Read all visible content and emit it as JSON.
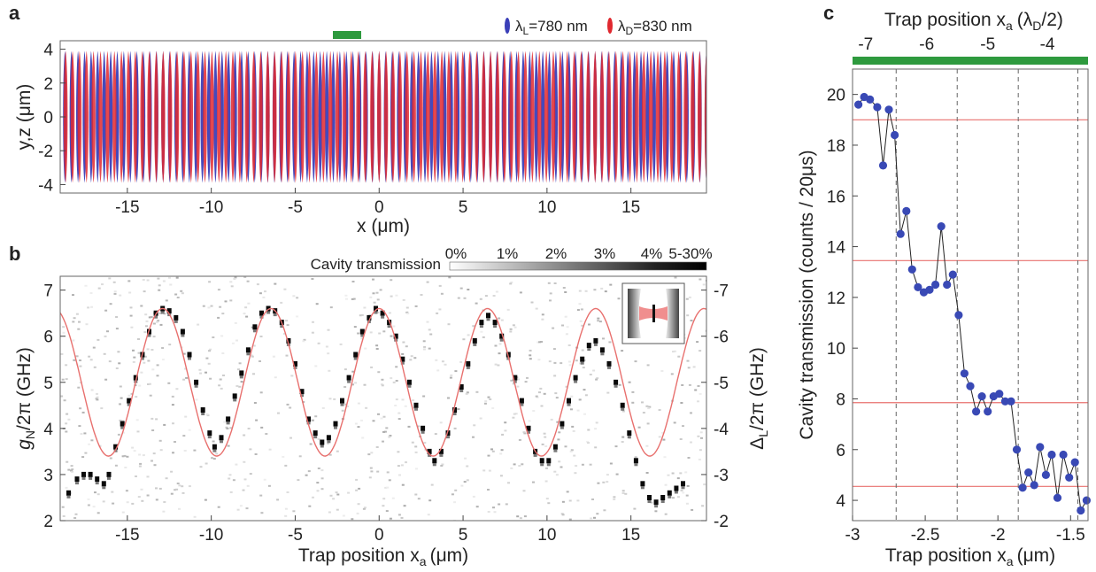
{
  "panels": {
    "a": {
      "letter": "a",
      "xlabel": "x (μm)",
      "ylabel": "y,z (μm)",
      "xticks": [
        "-15",
        "-10",
        "-5",
        "0",
        "5",
        "10",
        "15"
      ],
      "yticks": [
        "-4",
        "-2",
        "0",
        "2",
        "4"
      ],
      "legend": [
        {
          "main": "λ",
          "sub": "L",
          "rest": "=780 nm",
          "color": "#3b3fb8"
        },
        {
          "main": "λ",
          "sub": "D",
          "rest": "=830 nm",
          "color": "#e0282f"
        }
      ],
      "marker_color": "#2e9a3e"
    },
    "b": {
      "letter": "b",
      "xlabel": "Trap position x",
      "xlabel_sub": "a",
      "xlabel_unit": "(μm)",
      "ylabel_left": "g",
      "ylabel_left_sub": "N",
      "ylabel_left_rest": "/2π (GHz)",
      "ylabel_right": "Δ",
      "ylabel_right_sub": "L",
      "ylabel_right_rest": "/2π (GHz)",
      "xticks": [
        "-15",
        "-10",
        "-5",
        "0",
        "5",
        "10",
        "15"
      ],
      "yticks_left": [
        "2",
        "3",
        "4",
        "5",
        "6",
        "7"
      ],
      "yticks_right": [
        "-2",
        "-3",
        "-4",
        "-5",
        "-6",
        "-7"
      ],
      "colorbar_title": "Cavity transmission",
      "colorbar_ticks": [
        "0%",
        "1%",
        "2%",
        "3%",
        "4%",
        "5-30%"
      ],
      "curve_color": "#e8706e"
    },
    "c": {
      "letter": "c",
      "xlabel": "Trap position x",
      "xlabel_sub": "a",
      "xlabel_unit": "(μm)",
      "ylabel": "Cavity transmission (counts / 20μs)",
      "top_label": "Trap position x",
      "top_label_sub": "a",
      "top_label_unit": "(λ",
      "top_label_unit_sub": "D",
      "top_label_unit_end": "/2)",
      "xticks": [
        "-3",
        "-2.5",
        "-2",
        "-1.5"
      ],
      "top_ticks": [
        "-7",
        "-6",
        "-5",
        "-4"
      ],
      "yticks": [
        "4",
        "6",
        "8",
        "10",
        "12",
        "14",
        "16",
        "18",
        "20"
      ],
      "bar_color": "#2e9a3e",
      "point_color": "#3949b5",
      "hline_color": "#e8706e"
    }
  },
  "chart_data": [
    {
      "panel": "a",
      "type": "line",
      "title": "",
      "xlabel": "x (μm)",
      "ylabel": "y,z (μm)",
      "xlim": [
        -19,
        19.5
      ],
      "ylim": [
        -4.5,
        4.5
      ],
      "series": [
        {
          "name": "λL=780 nm",
          "wavelength_nm": 780,
          "color": "#3b3fb8",
          "amplitude_um": 3.9
        },
        {
          "name": "λD=830 nm",
          "wavelength_nm": 830,
          "color": "#e0282f",
          "amplitude_um": 3.9
        }
      ],
      "highlight_x_range": [
        -3,
        -1.3
      ]
    },
    {
      "panel": "b",
      "type": "line",
      "title": "",
      "xlabel": "Trap position xa (μm)",
      "ylabel": "gN/2π (GHz)",
      "ylabel_right": "ΔL/2π (GHz)",
      "xlim": [
        -19,
        19.5
      ],
      "ylim": [
        2,
        7.3
      ],
      "ylim_right": [
        -2,
        -7.3
      ],
      "model_curve": {
        "center_ghz": 5.0,
        "amplitude_ghz": 1.6,
        "period_um": 6.45,
        "phase_um": 0.0
      },
      "data_points": [
        [
          -18.5,
          2.6
        ],
        [
          -18.0,
          2.9
        ],
        [
          -17.6,
          3.0
        ],
        [
          -17.2,
          3.0
        ],
        [
          -16.8,
          2.9
        ],
        [
          -16.4,
          2.8
        ],
        [
          -16.1,
          3.0
        ],
        [
          -15.7,
          3.6
        ],
        [
          -15.3,
          4.1
        ],
        [
          -14.9,
          4.6
        ],
        [
          -14.5,
          5.1
        ],
        [
          -14.1,
          5.6
        ],
        [
          -13.7,
          6.1
        ],
        [
          -13.3,
          6.5
        ],
        [
          -12.9,
          6.6
        ],
        [
          -12.5,
          6.55
        ],
        [
          -12.1,
          6.4
        ],
        [
          -11.7,
          6.1
        ],
        [
          -11.3,
          5.6
        ],
        [
          -10.9,
          5.0
        ],
        [
          -10.5,
          4.4
        ],
        [
          -10.1,
          3.9
        ],
        [
          -9.8,
          3.6
        ],
        [
          -9.4,
          3.8
        ],
        [
          -9.0,
          4.2
        ],
        [
          -8.6,
          4.7
        ],
        [
          -8.2,
          5.2
        ],
        [
          -7.8,
          5.7
        ],
        [
          -7.4,
          6.2
        ],
        [
          -7.0,
          6.5
        ],
        [
          -6.6,
          6.6
        ],
        [
          -6.2,
          6.55
        ],
        [
          -5.8,
          6.3
        ],
        [
          -5.4,
          5.9
        ],
        [
          -5.0,
          5.4
        ],
        [
          -4.6,
          4.8
        ],
        [
          -4.2,
          4.2
        ],
        [
          -3.8,
          3.9
        ],
        [
          -3.4,
          3.7
        ],
        [
          -3.0,
          3.8
        ],
        [
          -2.6,
          4.1
        ],
        [
          -2.2,
          4.6
        ],
        [
          -1.8,
          5.1
        ],
        [
          -1.4,
          5.6
        ],
        [
          -1.0,
          6.1
        ],
        [
          -0.6,
          6.4
        ],
        [
          -0.2,
          6.6
        ],
        [
          0.2,
          6.5
        ],
        [
          0.6,
          6.3
        ],
        [
          1.0,
          6.0
        ],
        [
          1.4,
          5.5
        ],
        [
          1.8,
          5.0
        ],
        [
          2.2,
          4.5
        ],
        [
          2.6,
          4.0
        ],
        [
          3.0,
          3.5
        ],
        [
          3.3,
          3.3
        ],
        [
          3.7,
          3.5
        ],
        [
          4.1,
          3.9
        ],
        [
          4.5,
          4.4
        ],
        [
          4.9,
          4.9
        ],
        [
          5.3,
          5.4
        ],
        [
          5.7,
          5.9
        ],
        [
          6.1,
          6.3
        ],
        [
          6.5,
          6.45
        ],
        [
          6.9,
          6.3
        ],
        [
          7.3,
          6.0
        ],
        [
          7.7,
          5.6
        ],
        [
          8.1,
          5.1
        ],
        [
          8.5,
          4.6
        ],
        [
          8.9,
          4.0
        ],
        [
          9.3,
          3.5
        ],
        [
          9.7,
          3.3
        ],
        [
          10.1,
          3.3
        ],
        [
          10.5,
          3.6
        ],
        [
          10.9,
          4.1
        ],
        [
          11.3,
          4.6
        ],
        [
          11.7,
          5.1
        ],
        [
          12.1,
          5.5
        ],
        [
          12.5,
          5.8
        ],
        [
          12.9,
          5.9
        ],
        [
          13.3,
          5.7
        ],
        [
          13.7,
          5.4
        ],
        [
          14.1,
          5.0
        ],
        [
          14.5,
          4.5
        ],
        [
          14.9,
          3.9
        ],
        [
          15.3,
          3.3
        ],
        [
          15.7,
          2.8
        ],
        [
          16.1,
          2.5
        ],
        [
          16.5,
          2.4
        ],
        [
          16.9,
          2.5
        ],
        [
          17.3,
          2.6
        ],
        [
          17.7,
          2.7
        ],
        [
          18.1,
          2.8
        ]
      ],
      "colorbar": {
        "label": "Cavity transmission",
        "ticks": [
          "0%",
          "1%",
          "2%",
          "3%",
          "4%",
          "5-30%"
        ]
      }
    },
    {
      "panel": "c",
      "type": "scatter",
      "title": "",
      "xlabel": "Trap position xa (μm)",
      "ylabel": "Cavity transmission (counts / 20μs)",
      "top_axis_label": "Trap position xa (λD/2)",
      "xlim": [
        -3.0,
        -1.38
      ],
      "ylim": [
        3.2,
        21
      ],
      "x": [
        -2.96,
        -2.92,
        -2.88,
        -2.83,
        -2.79,
        -2.75,
        -2.71,
        -2.67,
        -2.63,
        -2.59,
        -2.55,
        -2.51,
        -2.47,
        -2.43,
        -2.39,
        -2.35,
        -2.31,
        -2.27,
        -2.23,
        -2.19,
        -2.15,
        -2.11,
        -2.07,
        -2.03,
        -1.99,
        -1.95,
        -1.91,
        -1.87,
        -1.83,
        -1.79,
        -1.75,
        -1.71,
        -1.67,
        -1.63,
        -1.59,
        -1.55,
        -1.51,
        -1.47,
        -1.43,
        -1.39
      ],
      "y": [
        19.6,
        19.9,
        19.8,
        19.5,
        17.2,
        19.4,
        18.4,
        14.5,
        15.4,
        13.1,
        12.4,
        12.2,
        12.3,
        12.5,
        14.8,
        12.5,
        12.9,
        11.3,
        9.0,
        8.5,
        7.5,
        8.1,
        7.5,
        8.1,
        8.2,
        7.9,
        7.9,
        6.0,
        4.5,
        5.1,
        4.6,
        6.1,
        5.0,
        5.8,
        4.1,
        5.8,
        4.9,
        5.5,
        3.6,
        4.0
      ],
      "top_ticks": [
        {
          "label": "-7",
          "x_um": -2.91
        },
        {
          "label": "-6",
          "x_um": -2.49
        },
        {
          "label": "-5",
          "x_um": -2.07
        },
        {
          "label": "-4",
          "x_um": -1.66
        }
      ],
      "step_levels": [
        19.0,
        13.45,
        7.85,
        4.55
      ],
      "step_boundaries_um": [
        -2.7,
        -2.28,
        -1.86,
        -1.45
      ]
    }
  ]
}
